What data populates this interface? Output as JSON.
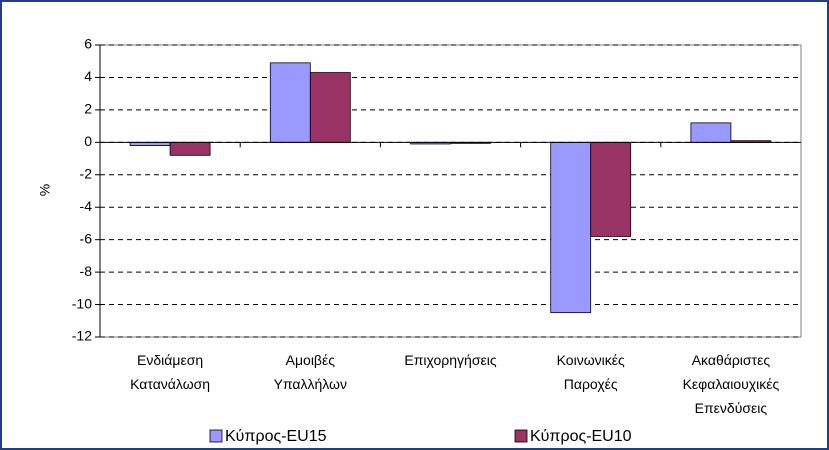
{
  "chart_data": {
    "type": "bar",
    "categories": [
      "Ενδιάμεση\nΚατανάλωση",
      "Αμοιβές\nΥπαλλήλων",
      "Επιχορηγήσεις",
      "Κοινωνικές\nΠαροχές",
      "Ακαθάριστες\nΚεφαλαιουχικές\nΕπενδύσεις"
    ],
    "series": [
      {
        "name": "Κύπρος-EU15",
        "color": "#9999ff",
        "values": [
          -0.2,
          4.9,
          -0.1,
          -10.5,
          1.2
        ]
      },
      {
        "name": "Κύπρος-EU10",
        "color": "#993366",
        "values": [
          -0.8,
          4.3,
          0,
          -5.8,
          0.1
        ]
      }
    ],
    "y_label": "%",
    "ylim": [
      -12,
      6
    ],
    "yticks": [
      -12,
      -10,
      -8,
      -6,
      -4,
      -2,
      0,
      2,
      4,
      6
    ],
    "grid": true,
    "legend": "bottom"
  }
}
